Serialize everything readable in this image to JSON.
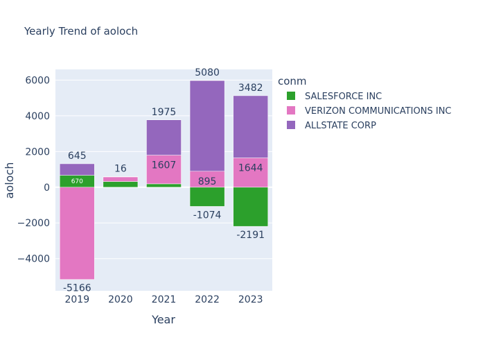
{
  "chart_data": {
    "type": "bar",
    "barmode": "relative",
    "title": "Yearly Trend of aoloch",
    "xlabel": "Year",
    "ylabel": "aoloch",
    "categories": [
      "2019",
      "2020",
      "2021",
      "2022",
      "2023"
    ],
    "ylim": [
      -5800,
      6600
    ],
    "yticks": [
      -4000,
      -2000,
      0,
      2000,
      4000,
      6000
    ],
    "ytick_labels": [
      "−4000",
      "−2000",
      "0",
      "2000",
      "4000",
      "6000"
    ],
    "grid": true,
    "legend": {
      "title": "conm",
      "placement": "right"
    },
    "series": [
      {
        "name": "SALESFORCE INC",
        "color": "#2ca02c",
        "values": [
          670,
          320,
          190,
          -1074,
          -2191
        ],
        "labels": [
          "670",
          "",
          "",
          "-1074",
          "-2191"
        ]
      },
      {
        "name": "VERIZON COMMUNICATIONS INC",
        "color": "#e377c2",
        "values": [
          -5166,
          260,
          1607,
          895,
          1644
        ],
        "labels": [
          "-5166",
          "",
          "1607",
          "895",
          "1644"
        ]
      },
      {
        "name": "ALLSTATE CORP",
        "color": "#9467bd",
        "values": [
          645,
          16,
          1975,
          5080,
          3482
        ],
        "labels": [
          "645",
          "16",
          "1975",
          "5080",
          "3482"
        ]
      }
    ],
    "plot_bg": "#e5ecf6",
    "grid_color": "#ffffff"
  }
}
